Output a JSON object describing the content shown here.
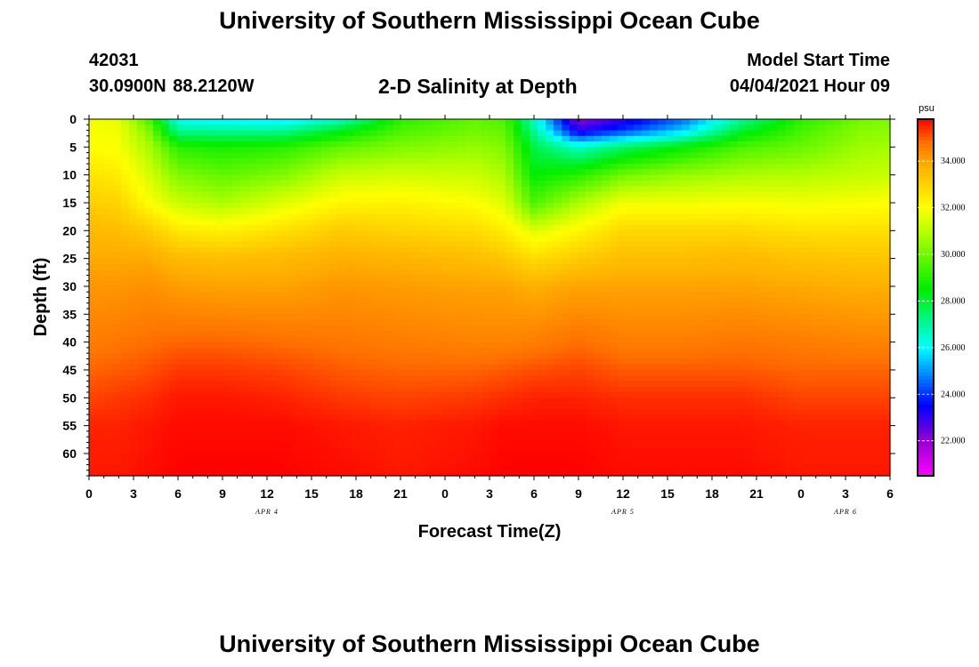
{
  "page": {
    "title_top": "University of Southern Mississippi Ocean Cube",
    "title_bottom": "University of Southern Mississippi Ocean Cube",
    "station_id": "42031",
    "station_coords": "30.0900N  88.2120W",
    "chart_title": "2-D Salinity at Depth",
    "model_label": "Model Start Time",
    "model_time": "04/04/2021 Hour 09"
  },
  "chart_data": {
    "type": "heatmap",
    "title": "2-D Salinity at Depth",
    "xlabel": "Forecast Time(Z)",
    "ylabel": "Depth (ft)",
    "x_hours": [
      0,
      3,
      6,
      9,
      12,
      15,
      18,
      21,
      24,
      27,
      30,
      33,
      36,
      39,
      42,
      45,
      48,
      51,
      54
    ],
    "x_tick_labels": [
      "0",
      "3",
      "6",
      "9",
      "12",
      "15",
      "18",
      "21",
      "0",
      "3",
      "6",
      "9",
      "12",
      "15",
      "18",
      "21",
      "0",
      "3",
      "6"
    ],
    "date_labels": [
      {
        "hour": 12,
        "label": "APR 4"
      },
      {
        "hour": 36,
        "label": "APR 5"
      },
      {
        "hour": 51,
        "label": "APR 6"
      }
    ],
    "depth_ticks": [
      0,
      5,
      10,
      15,
      20,
      25,
      30,
      35,
      40,
      45,
      50,
      55,
      60
    ],
    "depth_range": [
      0,
      64
    ],
    "xlim": [
      0,
      54
    ],
    "colorbar": {
      "unit": "psu",
      "range": [
        20.5,
        35.8
      ],
      "tick_labels": [
        "22.000",
        "24.000",
        "26.000",
        "28.000",
        "30.000",
        "32.000",
        "34.000"
      ],
      "tick_values": [
        22,
        24,
        26,
        28,
        30,
        32,
        34
      ],
      "colors": [
        {
          "v": 20.5,
          "c": "#ff00ff"
        },
        {
          "v": 22.0,
          "c": "#9400d3"
        },
        {
          "v": 23.5,
          "c": "#0000ff"
        },
        {
          "v": 26.0,
          "c": "#00ffff"
        },
        {
          "v": 28.5,
          "c": "#00ee00"
        },
        {
          "v": 31.0,
          "c": "#bbff00"
        },
        {
          "v": 32.0,
          "c": "#ffff00"
        },
        {
          "v": 33.8,
          "c": "#ffb000"
        },
        {
          "v": 34.8,
          "c": "#ff7000"
        },
        {
          "v": 35.8,
          "c": "#ff0000"
        }
      ]
    },
    "profiles_hours": [
      0,
      2,
      4,
      6,
      9,
      13,
      17,
      21,
      26,
      28,
      30,
      33,
      36,
      40,
      44,
      48,
      52,
      54
    ],
    "profiles_depths": [
      0,
      2,
      5,
      10,
      15,
      20,
      25,
      30,
      40,
      45,
      50,
      55,
      64
    ],
    "profiles_psu": [
      [
        31.8,
        31.9,
        32.0,
        32.6,
        33.1,
        33.6,
        33.9,
        34.2,
        34.6,
        34.9,
        35.2,
        35.5,
        35.6
      ],
      [
        31.6,
        31.8,
        31.9,
        32.4,
        33.0,
        33.5,
        33.9,
        34.2,
        34.7,
        35.0,
        35.3,
        35.5,
        35.6
      ],
      [
        29.5,
        30.2,
        30.8,
        31.4,
        32.0,
        33.2,
        33.9,
        34.3,
        34.8,
        35.1,
        35.4,
        35.6,
        35.7
      ],
      [
        26.0,
        27.0,
        29.0,
        30.2,
        31.2,
        32.5,
        33.6,
        34.1,
        34.9,
        35.3,
        35.6,
        35.7,
        35.8
      ],
      [
        25.8,
        27.0,
        28.8,
        29.8,
        30.8,
        32.3,
        33.5,
        34.0,
        34.9,
        35.3,
        35.6,
        35.7,
        35.8
      ],
      [
        25.6,
        27.0,
        29.0,
        30.2,
        31.5,
        32.7,
        33.6,
        34.0,
        34.8,
        35.2,
        35.5,
        35.7,
        35.8
      ],
      [
        26.5,
        28.2,
        29.8,
        31.2,
        32.2,
        33.2,
        33.8,
        34.2,
        34.7,
        35.0,
        35.3,
        35.6,
        35.7
      ],
      [
        29.0,
        29.5,
        30.2,
        31.3,
        32.3,
        33.0,
        33.7,
        34.1,
        34.6,
        34.9,
        35.2,
        35.5,
        35.6
      ],
      [
        29.8,
        30.0,
        30.5,
        31.2,
        32.0,
        32.8,
        33.5,
        34.0,
        34.5,
        34.9,
        35.3,
        35.6,
        35.7
      ],
      [
        29.5,
        29.8,
        30.2,
        30.8,
        31.5,
        32.4,
        33.3,
        34.0,
        34.5,
        35.0,
        35.4,
        35.7,
        35.8
      ],
      [
        26.5,
        27.0,
        27.8,
        28.5,
        29.5,
        31.5,
        32.8,
        33.8,
        34.6,
        35.1,
        35.5,
        35.7,
        35.8
      ],
      [
        22.0,
        23.0,
        26.5,
        29.0,
        30.8,
        32.2,
        33.2,
        34.0,
        34.8,
        35.2,
        35.5,
        35.7,
        35.8
      ],
      [
        23.0,
        24.0,
        27.5,
        30.0,
        31.8,
        32.9,
        33.5,
        34.0,
        34.6,
        35.0,
        35.4,
        35.6,
        35.7
      ],
      [
        24.5,
        25.5,
        28.5,
        30.5,
        31.8,
        32.9,
        33.5,
        34.0,
        34.6,
        35.0,
        35.4,
        35.6,
        35.7
      ],
      [
        27.0,
        28.0,
        29.5,
        30.8,
        31.9,
        32.9,
        33.6,
        34.0,
        34.7,
        35.0,
        35.4,
        35.6,
        35.7
      ],
      [
        29.0,
        29.4,
        29.9,
        30.9,
        31.8,
        32.7,
        33.4,
        33.9,
        34.6,
        34.9,
        35.2,
        35.5,
        35.6
      ],
      [
        30.0,
        30.3,
        30.6,
        31.1,
        31.9,
        32.7,
        33.3,
        33.8,
        34.5,
        34.9,
        35.2,
        35.5,
        35.6
      ],
      [
        30.2,
        30.4,
        30.7,
        31.2,
        32.0,
        32.7,
        33.3,
        33.8,
        34.5,
        34.9,
        35.2,
        35.5,
        35.6
      ]
    ]
  }
}
